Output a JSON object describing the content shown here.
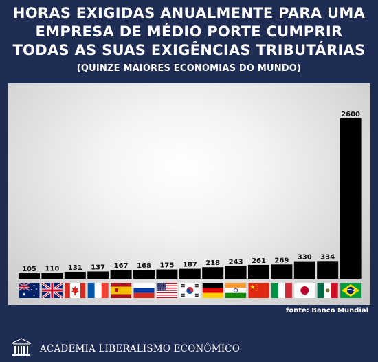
{
  "title_line1": "HORAS EXIGIDAS ANUALMENTE PARA UMA",
  "title_line2": "EMPRESA DE MÉDIO PORTE CUMPRIR",
  "title_line3": "TODAS AS SUAS EXIGÊNCIAS TRIBUTÁRIAS",
  "subtitle": "(QUINZE MAIORES ECONOMIAS DO MUNDO)",
  "source": "fonte: Banco Mundial",
  "organization": "ACADEMIA LIBERALISMO ECONÔMICO",
  "colors": {
    "background": "#1f2d54",
    "bar": "#000000",
    "text": "#ffffff"
  },
  "chart_data": {
    "type": "bar",
    "title": "HORAS EXIGIDAS ANUALMENTE PARA UMA EMPRESA DE MÉDIO PORTE CUMPRIR TODAS AS SUAS EXIGÊNCIAS TRIBUTÁRIAS",
    "subtitle": "(QUINZE MAIORES ECONOMIAS DO MUNDO)",
    "categories": [
      "australia-flag",
      "uk-flag",
      "canada-flag",
      "france-flag",
      "spain-flag",
      "russia-flag",
      "usa-flag",
      "south-korea-flag",
      "germany-flag",
      "india-flag",
      "china-flag",
      "italy-flag",
      "japan-flag",
      "mexico-flag",
      "brazil-flag"
    ],
    "values": [
      105,
      110,
      131,
      137,
      167,
      168,
      175,
      187,
      218,
      243,
      261,
      269,
      330,
      334,
      2600
    ],
    "data_labels": [
      "105",
      "110",
      "131",
      "137",
      "167",
      "168",
      "175",
      "187",
      "218",
      "243",
      "261",
      "269",
      "330",
      "334",
      "2600"
    ],
    "note": "",
    "axis_break": true,
    "grid": false,
    "legend": "none"
  }
}
